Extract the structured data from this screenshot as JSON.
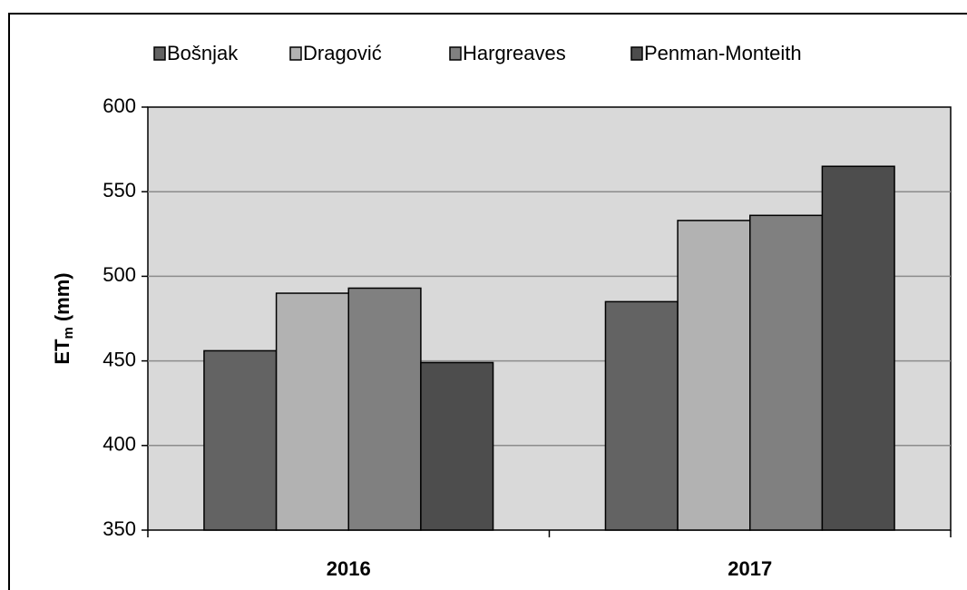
{
  "chart_data": {
    "type": "bar",
    "y_label": {
      "main": "ET",
      "sub": "m",
      "unit": "(mm)"
    },
    "categories": [
      "2016",
      "2017"
    ],
    "series": [
      {
        "name": "Bošnjak",
        "color": "#636363",
        "values": [
          456,
          485
        ]
      },
      {
        "name": "Dragović",
        "color": "#b2b2b2",
        "values": [
          490,
          533
        ]
      },
      {
        "name": "Hargreaves",
        "color": "#808080",
        "values": [
          493,
          536
        ]
      },
      {
        "name": "Penman-Monteith",
        "color": "#4d4d4d",
        "values": [
          449,
          565
        ]
      }
    ],
    "ylim": [
      350,
      600
    ],
    "yticks": [
      350,
      400,
      450,
      500,
      550,
      600
    ],
    "grid": true,
    "legend": "top"
  }
}
